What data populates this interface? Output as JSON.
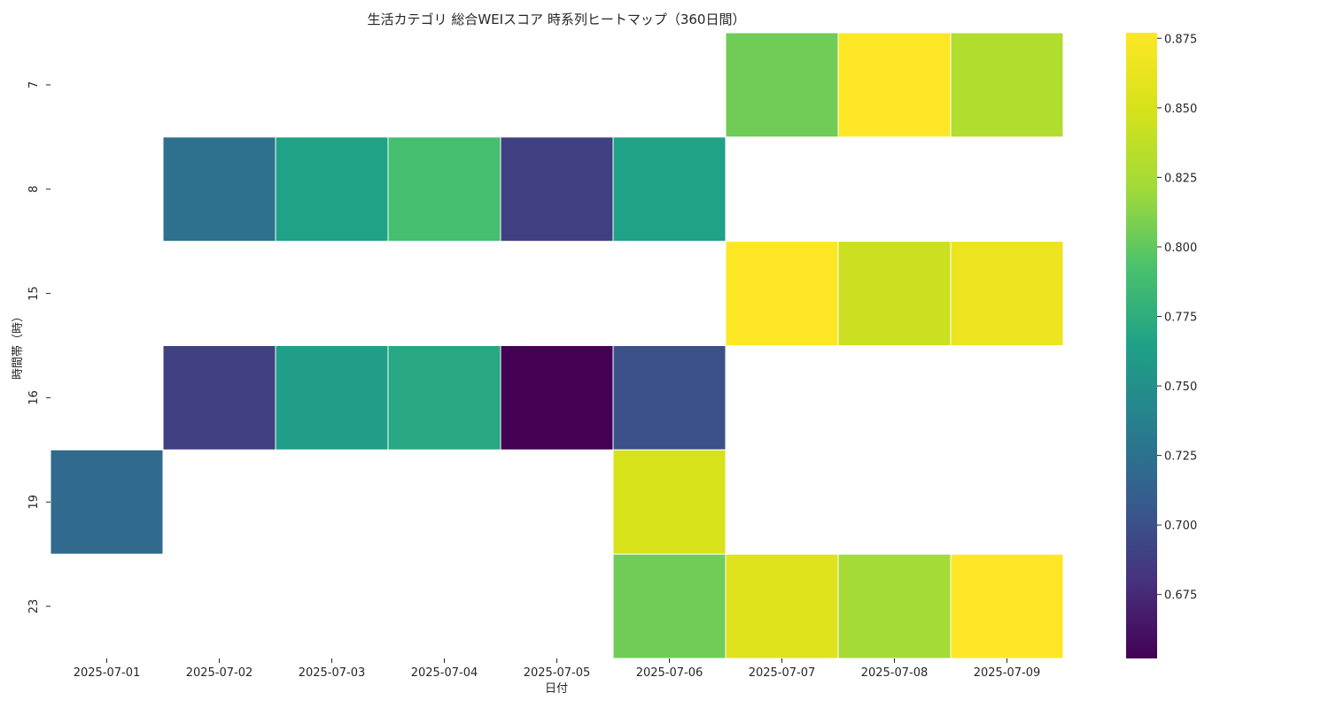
{
  "chart_data": {
    "type": "heatmap",
    "title": "生活カテゴリ 総合WEIスコア 時系列ヒートマップ（360日間）",
    "xlabel": "日付",
    "ylabel": "時間帯（時）",
    "x_categories": [
      "2025-07-01",
      "2025-07-02",
      "2025-07-03",
      "2025-07-04",
      "2025-07-05",
      "2025-07-06",
      "2025-07-07",
      "2025-07-08",
      "2025-07-09"
    ],
    "y_categories": [
      "7",
      "8",
      "15",
      "16",
      "19",
      "23"
    ],
    "values": [
      [
        null,
        null,
        null,
        null,
        null,
        null,
        0.805,
        0.877,
        0.83
      ],
      [
        null,
        0.725,
        0.765,
        0.79,
        0.69,
        0.765,
        null,
        null,
        null
      ],
      [
        null,
        null,
        null,
        null,
        null,
        null,
        0.877,
        0.843,
        0.865
      ],
      [
        null,
        0.69,
        0.762,
        0.77,
        0.652,
        0.7,
        null,
        null,
        null
      ],
      [
        0.72,
        null,
        null,
        null,
        null,
        0.85,
        null,
        null,
        null
      ],
      [
        null,
        null,
        null,
        null,
        null,
        0.805,
        0.855,
        0.823,
        0.877
      ]
    ],
    "colormap": "viridis",
    "vmin": 0.652,
    "vmax": 0.877,
    "colorbar_ticks": [
      "0.675",
      "0.700",
      "0.725",
      "0.750",
      "0.775",
      "0.800",
      "0.825",
      "0.850",
      "0.875"
    ]
  }
}
